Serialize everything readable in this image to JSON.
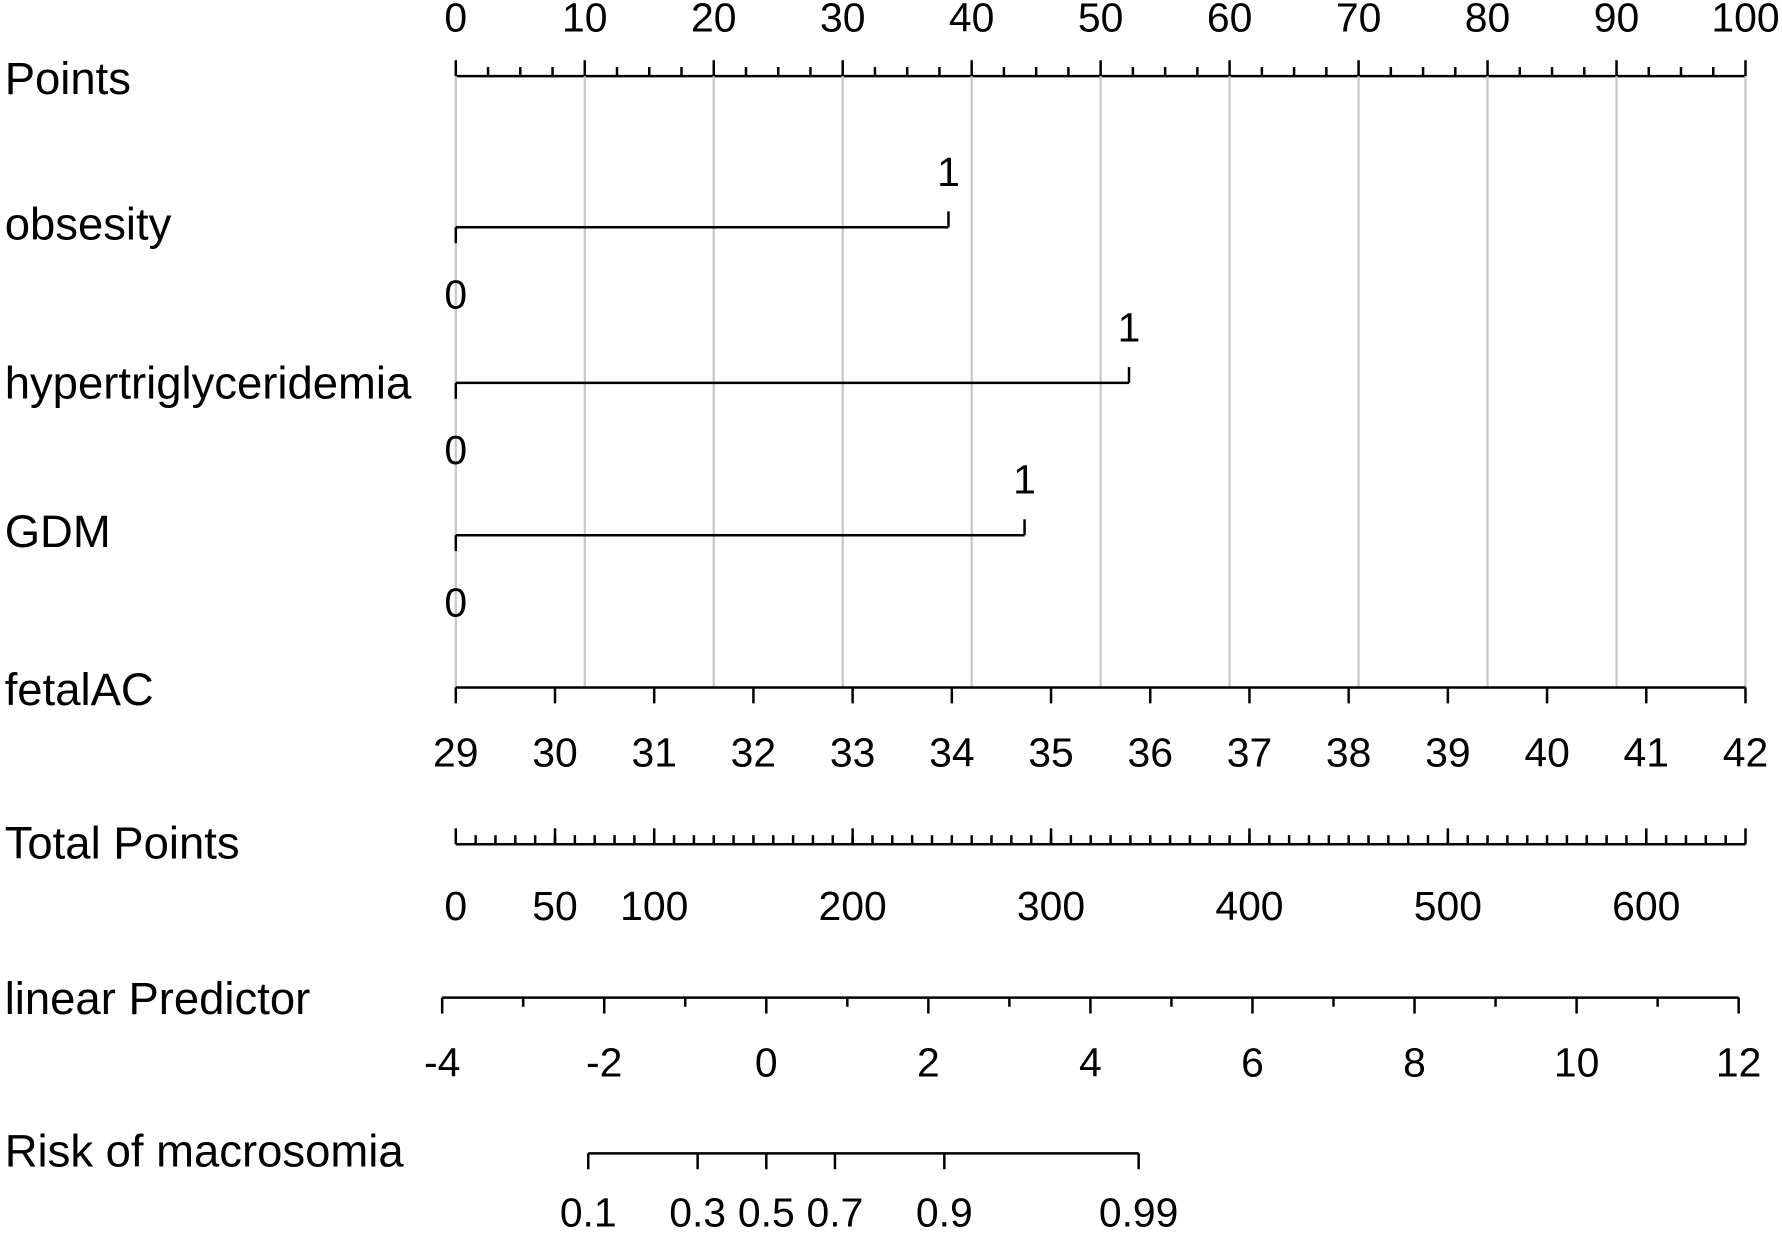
{
  "chart_data": {
    "type": "nomogram",
    "grid": true,
    "color": "#000000",
    "grid_color": "#c8c8c8",
    "points_axis": {
      "label": "Points",
      "lim": [
        0,
        100
      ],
      "ticks": [
        0,
        10,
        20,
        30,
        40,
        50,
        60,
        70,
        80,
        90,
        100
      ]
    },
    "variables": [
      {
        "label": "obsesity",
        "levels": [
          "0",
          "1"
        ],
        "points": [
          0,
          38.2
        ]
      },
      {
        "label": "hypertriglyceridemia",
        "levels": [
          "0",
          "1"
        ],
        "points": [
          0,
          52.2
        ]
      },
      {
        "label": "GDM",
        "levels": [
          "0",
          "1"
        ],
        "points": [
          0,
          44.1
        ]
      }
    ],
    "continuous": {
      "label": "fetalAC",
      "lim": [
        29,
        42
      ],
      "points_lim": [
        0,
        100
      ],
      "ticks": [
        29,
        30,
        31,
        32,
        33,
        34,
        35,
        36,
        37,
        38,
        39,
        40,
        41,
        42
      ]
    },
    "total_points": {
      "label": "Total Points",
      "lim": [
        0,
        650
      ],
      "ticks": [
        0,
        50,
        100,
        200,
        300,
        400,
        500,
        600
      ]
    },
    "linear_predictor": {
      "label": "linear Predictor",
      "lim": [
        -4,
        12
      ],
      "ticks": [
        -4,
        -2,
        0,
        2,
        4,
        6,
        8,
        10,
        12
      ]
    },
    "risk": {
      "label": "Risk of macrosomia",
      "scale": "logit",
      "ticks": [
        0.1,
        0.3,
        0.5,
        0.7,
        0.9,
        0.99
      ]
    }
  }
}
